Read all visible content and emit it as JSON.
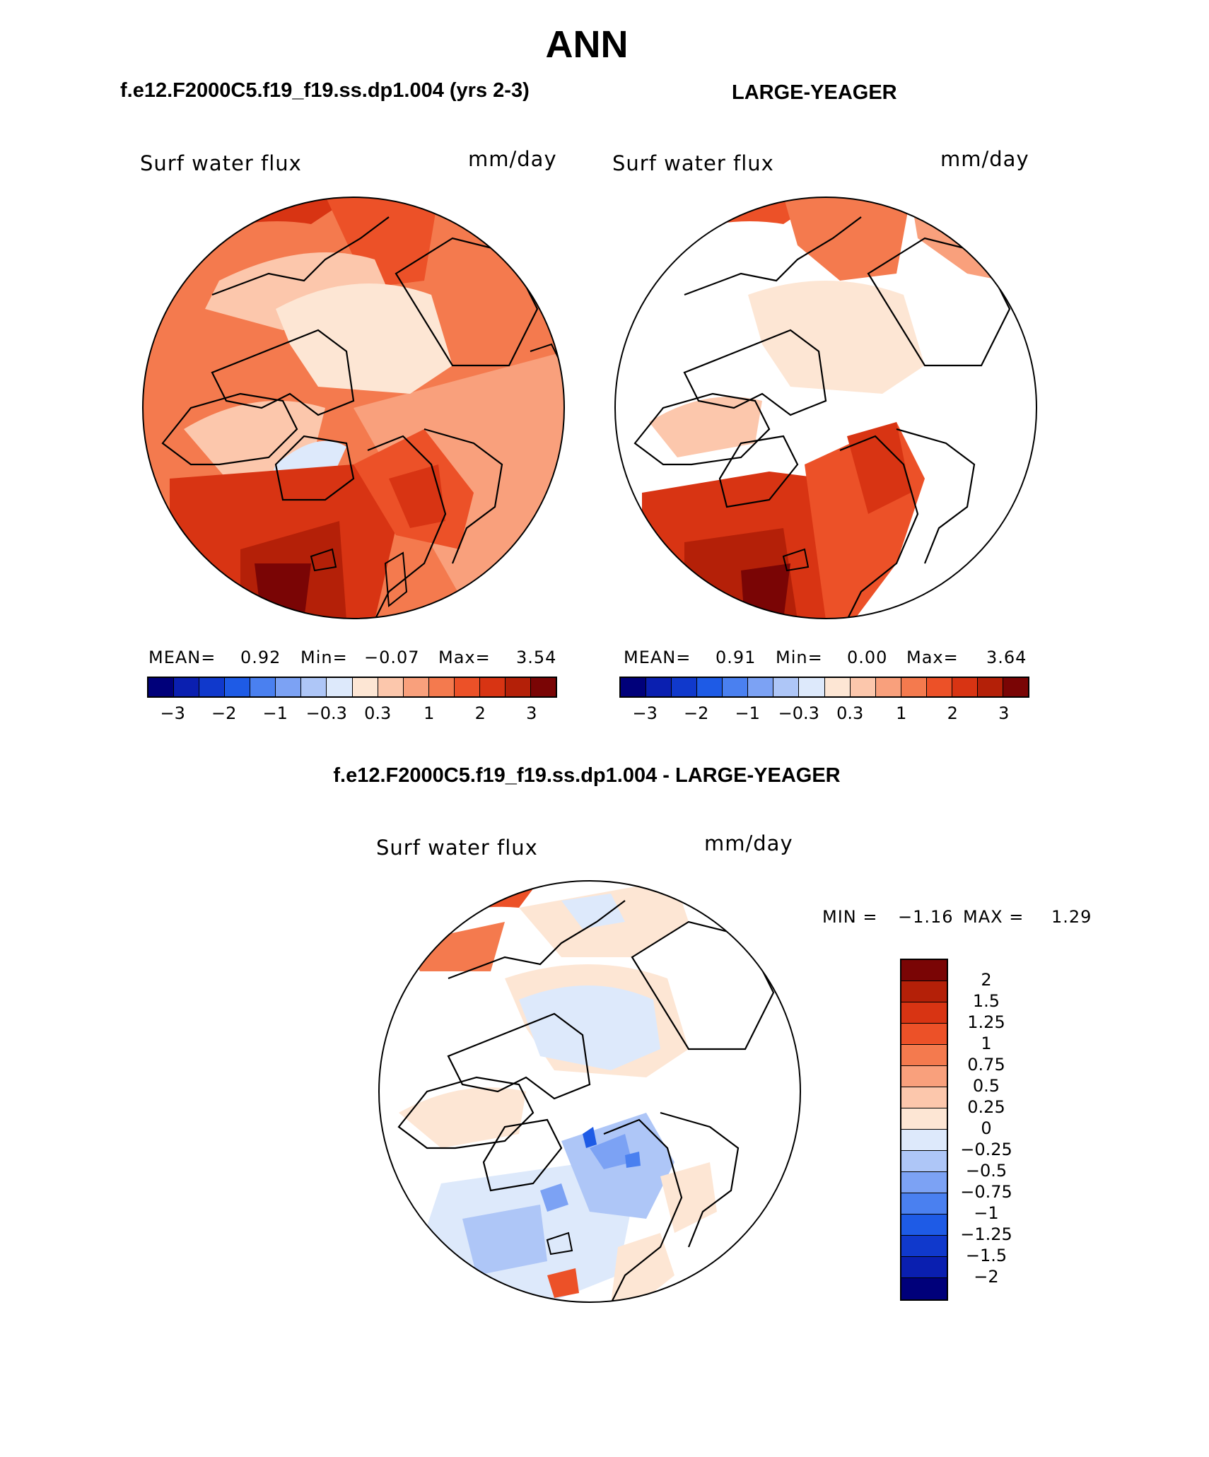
{
  "page": {
    "title": "ANN",
    "test_case": "f.e12.F2000C5.f19_f19.ss.dp1.004 (yrs 2-3)",
    "obs_case": "LARGE-YEAGER",
    "diff_title": "f.e12.F2000C5.f19_f19.ss.dp1.004 - LARGE-YEAGER"
  },
  "panels": {
    "test": {
      "variable": "Surf water flux",
      "units": "mm/day",
      "mean_label": "MEAN=",
      "mean": "0.92",
      "min_label": "Min=",
      "min": "−0.07",
      "max_label": "Max=",
      "max": "3.54"
    },
    "obs": {
      "variable": "Surf water flux",
      "units": "mm/day",
      "mean_label": "MEAN=",
      "mean": "0.91",
      "min_label": "Min=",
      "min": "0.00",
      "max_label": "Max=",
      "max": "3.64"
    },
    "diff": {
      "variable": "Surf water flux",
      "units": "mm/day",
      "min_label": "MIN =",
      "min": "−1.16",
      "max_label": "MAX =",
      "max": "1.29"
    }
  },
  "abs_colorbar": {
    "colors": [
      "#00007a",
      "#0a1fb0",
      "#1039cc",
      "#1e5be6",
      "#4a80f0",
      "#7ca2f4",
      "#aec6f7",
      "#dde9fb",
      "#fde6d4",
      "#fcc7ac",
      "#f9a07c",
      "#f47a4e",
      "#ec5128",
      "#d83413",
      "#b42008",
      "#7a0505"
    ],
    "ticks": [
      "−3",
      "−2",
      "−1",
      "−0.3",
      "0.3",
      "1",
      "2",
      "3"
    ]
  },
  "diff_colorbar": {
    "colors": [
      "#7a0505",
      "#b42008",
      "#d83413",
      "#ec5128",
      "#f47a4e",
      "#f9a07c",
      "#fcc7ac",
      "#fde6d4",
      "#dde9fb",
      "#aec6f7",
      "#7ca2f4",
      "#4a80f0",
      "#1e5be6",
      "#1039cc",
      "#0a1fb0",
      "#00007a"
    ],
    "labels": [
      "2",
      "1.5",
      "1.25",
      "1",
      "0.75",
      "0.5",
      "0.25",
      "0",
      "−0.25",
      "−0.5",
      "−0.75",
      "−1",
      "−1.25",
      "−1.5",
      "−2"
    ]
  }
}
